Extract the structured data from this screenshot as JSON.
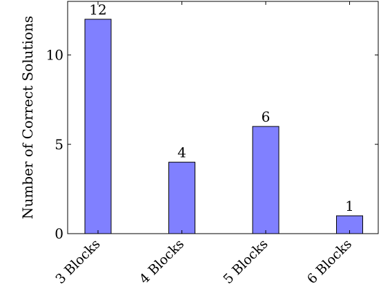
{
  "chart_data": {
    "type": "bar",
    "categories": [
      "3 Blocks",
      "4 Blocks",
      "5 Blocks",
      "6 Blocks"
    ],
    "values": [
      12,
      4,
      6,
      1
    ],
    "data_labels": [
      "12",
      "4",
      "6",
      "1"
    ],
    "title": "",
    "xlabel": "",
    "ylabel": "Number of Correct Solutions",
    "ylim": [
      0,
      13
    ],
    "yticks": [
      0,
      5,
      10
    ],
    "ytick_labels": [
      "0",
      "5",
      "10"
    ],
    "grid": false,
    "legend": "none",
    "colors": {
      "bar_fill": "#8080ff",
      "bar_stroke": "#000000",
      "axis": "#000000"
    }
  }
}
